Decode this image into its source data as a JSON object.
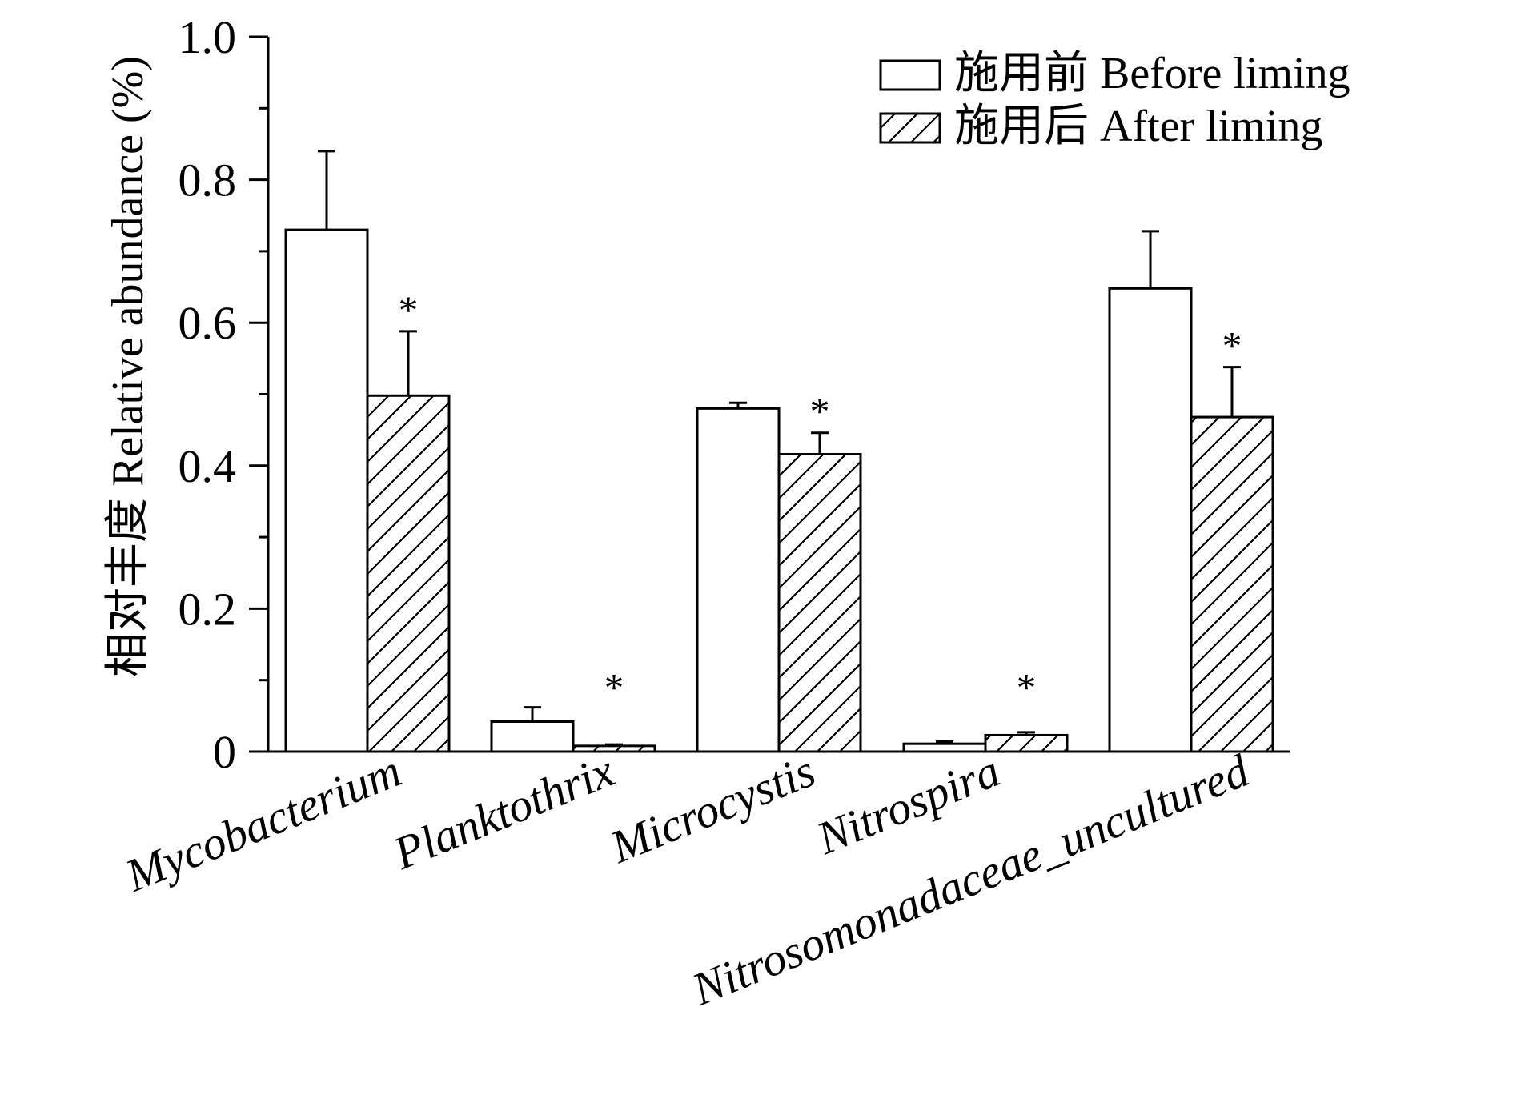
{
  "chart_data": {
    "type": "bar",
    "title": "",
    "xlabel": "",
    "ylabel": "相对丰度 Relative abundance (%)",
    "ylim": [
      0,
      1.0
    ],
    "yticks": [
      0,
      0.2,
      0.4,
      0.6,
      0.8,
      1.0
    ],
    "ytick_labels": [
      "0",
      "0.2",
      "0.4",
      "0.6",
      "0.8",
      "1.0"
    ],
    "categories": [
      "Mycobacterium",
      "Planktothrix",
      "Microcystis",
      "Nitrospira",
      "Nitrosomonadaceae_uncultured"
    ],
    "series": [
      {
        "name": "施用前 Before liming",
        "pattern": "empty",
        "values": [
          0.73,
          0.042,
          0.48,
          0.011,
          0.648
        ],
        "error_upper": [
          0.11,
          0.02,
          0.008,
          0.003,
          0.08
        ]
      },
      {
        "name": "施用后 After liming",
        "pattern": "hatched",
        "values": [
          0.498,
          0.008,
          0.416,
          0.023,
          0.468
        ],
        "error_upper": [
          0.09,
          0.002,
          0.03,
          0.004,
          0.07
        ]
      }
    ],
    "significance": [
      "*",
      "*",
      "*",
      "*",
      "*"
    ],
    "legend_position": "top-right",
    "grid": false
  },
  "colors": {
    "axis": "#000000",
    "bar_fill": "#ffffff",
    "bar_stroke": "#000000"
  }
}
